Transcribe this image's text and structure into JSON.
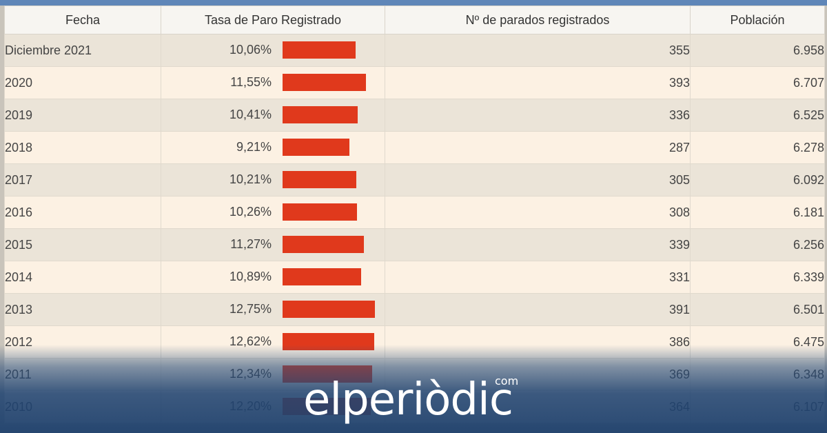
{
  "colors": {
    "bar": "#e0391c",
    "header_bar": "#5f86b8",
    "row_odd": "#ebe4d8",
    "row_even": "#fcf1e3"
  },
  "table": {
    "headers": [
      "Fecha",
      "Tasa de Paro Registrado",
      "Nº de parados registrados",
      "Población"
    ],
    "rows": [
      {
        "fecha": "Diciembre 2021",
        "tasa": "10,06%",
        "rate": 10.06,
        "parados": "355",
        "poblacion": "6.958"
      },
      {
        "fecha": "2020",
        "tasa": "11,55%",
        "rate": 11.55,
        "parados": "393",
        "poblacion": "6.707"
      },
      {
        "fecha": "2019",
        "tasa": "10,41%",
        "rate": 10.41,
        "parados": "336",
        "poblacion": "6.525"
      },
      {
        "fecha": "2018",
        "tasa": "9,21%",
        "rate": 9.21,
        "parados": "287",
        "poblacion": "6.278"
      },
      {
        "fecha": "2017",
        "tasa": "10,21%",
        "rate": 10.21,
        "parados": "305",
        "poblacion": "6.092"
      },
      {
        "fecha": "2016",
        "tasa": "10,26%",
        "rate": 10.26,
        "parados": "308",
        "poblacion": "6.181"
      },
      {
        "fecha": "2015",
        "tasa": "11,27%",
        "rate": 11.27,
        "parados": "339",
        "poblacion": "6.256"
      },
      {
        "fecha": "2014",
        "tasa": "10,89%",
        "rate": 10.89,
        "parados": "331",
        "poblacion": "6.339"
      },
      {
        "fecha": "2013",
        "tasa": "12,75%",
        "rate": 12.75,
        "parados": "391",
        "poblacion": "6.501"
      },
      {
        "fecha": "2012",
        "tasa": "12,62%",
        "rate": 12.62,
        "parados": "386",
        "poblacion": "6.475"
      },
      {
        "fecha": "2011",
        "tasa": "12,34%",
        "rate": 12.34,
        "parados": "369",
        "poblacion": "6.348"
      },
      {
        "fecha": "2010",
        "tasa": "12,20%",
        "rate": 12.2,
        "parados": "364",
        "poblacion": "6.107"
      }
    ]
  },
  "logo": {
    "text": "elperiòdic",
    "tld": "com"
  }
}
